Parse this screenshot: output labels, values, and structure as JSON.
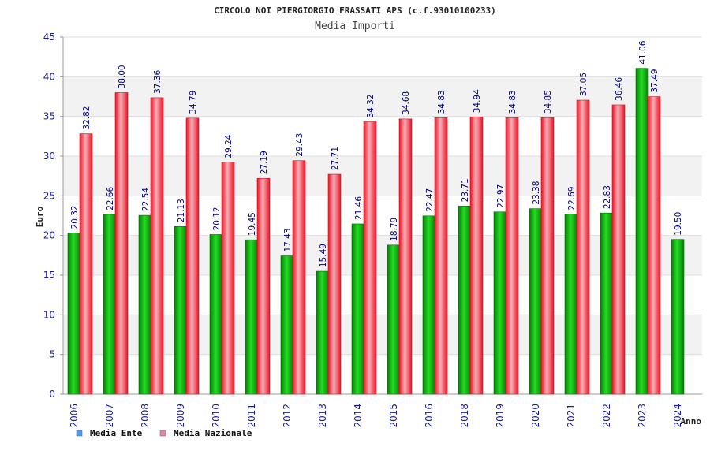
{
  "chart_data": {
    "type": "bar",
    "title": "CIRCOLO NOI PIERGIORGIO FRASSATI APS (c.f.93010100233)",
    "subtitle": "Media Importi",
    "xlabel": "Anno",
    "ylabel": "Euro",
    "ylim": [
      0,
      45
    ],
    "yticks": [
      0,
      5,
      10,
      15,
      20,
      25,
      30,
      35,
      40,
      45
    ],
    "grid": true,
    "legend_position": "bottom-left",
    "categories": [
      "2006",
      "2007",
      "2008",
      "2009",
      "2010",
      "2011",
      "2012",
      "2013",
      "2014",
      "2015",
      "2016",
      "2018",
      "2019",
      "2020",
      "2021",
      "2022",
      "2023",
      "2024"
    ],
    "series": [
      {
        "name": "Media Ente",
        "color": "#22aa22",
        "legend_color": "#5599ee",
        "values": [
          20.32,
          22.66,
          22.54,
          21.13,
          20.12,
          19.45,
          17.43,
          15.49,
          21.46,
          18.79,
          22.47,
          23.71,
          22.97,
          23.38,
          22.69,
          22.83,
          41.06,
          19.5
        ],
        "labels": [
          "20.32",
          "22.66",
          "22.54",
          "21.13",
          "20.12",
          "19.45",
          "17.43",
          "15.49",
          "21.46",
          "18.79",
          "22.47",
          "23.71",
          "22.97",
          "23.38",
          "22.69",
          "22.83",
          "41.06",
          "19.50"
        ]
      },
      {
        "name": "Media Nazionale",
        "color": "#ee2233",
        "legend_color": "#dd88aa",
        "values": [
          32.82,
          38.0,
          37.36,
          34.79,
          29.24,
          27.19,
          29.43,
          27.71,
          34.32,
          34.68,
          34.83,
          34.94,
          34.83,
          34.85,
          37.05,
          36.46,
          37.49,
          null
        ],
        "labels": [
          "32.82",
          "38.00",
          "37.36",
          "34.79",
          "29.24",
          "27.19",
          "29.43",
          "27.71",
          "34.32",
          "34.68",
          "34.83",
          "34.94",
          "34.83",
          "34.85",
          "37.05",
          "36.46",
          "37.49",
          ""
        ]
      }
    ]
  }
}
